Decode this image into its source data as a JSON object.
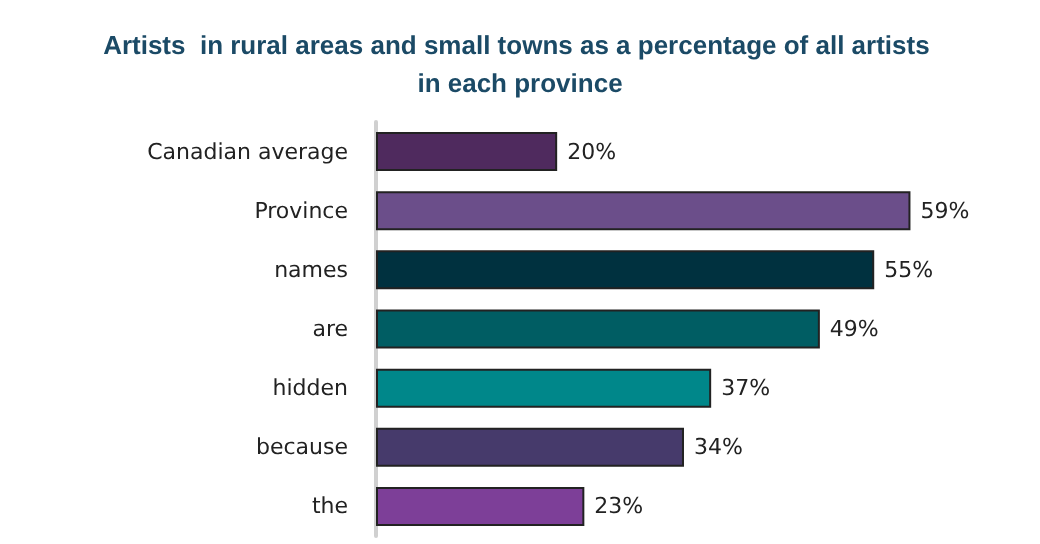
{
  "chart_data": {
    "type": "bar",
    "orientation": "horizontal",
    "title": "Artists  in rural areas and small towns as a percentage of all artists in each province",
    "categories": [
      "Canadian average",
      "Province",
      "names",
      "are",
      "hidden",
      "because",
      "the"
    ],
    "values": [
      20,
      59,
      55,
      49,
      37,
      34,
      23
    ],
    "value_labels": [
      "20%",
      "59%",
      "55%",
      "49%",
      "37%",
      "34%",
      "23%"
    ],
    "colors": [
      "#4f2a5e",
      "#6b4e8a",
      "#00313f",
      "#005d63",
      "#00878a",
      "#463a6b",
      "#7d3f98"
    ]
  }
}
